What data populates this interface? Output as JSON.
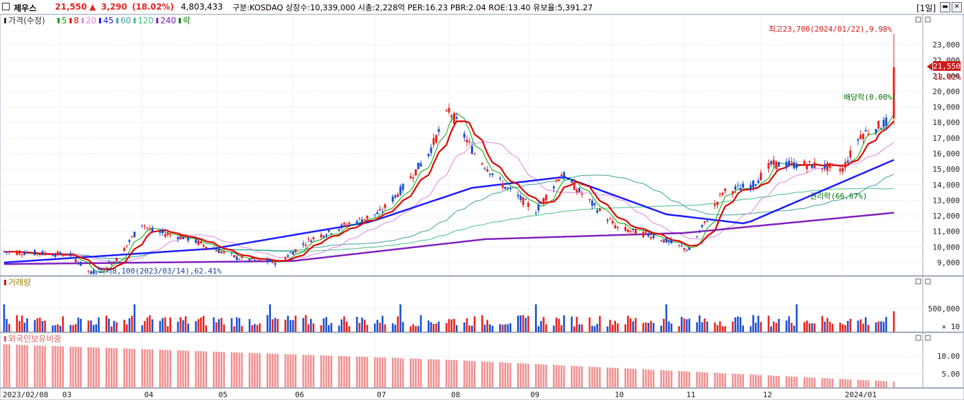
{
  "header": {
    "stock_name": "제우스",
    "price": "21,550",
    "change_arrow": "▲",
    "change": "3,290",
    "change_pct": "(18.02%)",
    "volume": "4,803,433",
    "info": "구분:KOSDAQ 상장수:10,339,000 시총:2,228억 PER:16.23 PBR:2.04 ROE:13.40 유보율:5,391.27",
    "period": "[1일]"
  },
  "price_pane": {
    "legend": [
      {
        "text": "가격(수정)",
        "color": "#333333"
      },
      {
        "text": "5",
        "color": "#00a000"
      },
      {
        "text": "8",
        "color": "#e00000"
      },
      {
        "text": "20",
        "color": "#e080e0"
      },
      {
        "text": "45",
        "color": "#1a1aff"
      },
      {
        "text": "60",
        "color": "#3aa0a0"
      },
      {
        "text": "120",
        "color": "#40c080"
      },
      {
        "text": "240",
        "color": "#8020c0"
      },
      {
        "text": "락",
        "color": "#008000"
      }
    ],
    "annotations": {
      "high": "최고23,700(2024/01/22),9.98%",
      "low": "최저8,100(2023/03/14),62.41%",
      "dividend": "배당락(0.00%)",
      "rights": "권리락(66.67%)"
    },
    "current_price_tag": "21,550",
    "current_pct_tag": "18.02%"
  },
  "volume_pane": {
    "title": "거래량",
    "axis_labels": [
      "500,000",
      "× 10"
    ]
  },
  "foreign_pane": {
    "title": "외국인보유비중",
    "axis_labels": [
      "10.00",
      "5.00"
    ]
  },
  "colors": {
    "up": "#e8221d",
    "down": "#1a4fd0",
    "bg": "#ffffff",
    "grid": "#c8ccd4"
  },
  "chart_data": {
    "type": "candlestick",
    "x_axis_labels": [
      "2023/02/08",
      "03",
      "04",
      "05",
      "06",
      "07",
      "08",
      "09",
      "10",
      "11",
      "12",
      "2024/01"
    ],
    "y_tick_labels": [
      "9,000",
      "10,000",
      "11,000",
      "12,000",
      "13,000",
      "14,000",
      "15,000",
      "16,000",
      "17,000",
      "18,000",
      "19,000",
      "20,000",
      "21,000",
      "22,000",
      "23,000"
    ],
    "ylim": [
      8000,
      24000
    ],
    "grid": true,
    "price_keypoints": [
      [
        "2023/02/08",
        9700
      ],
      [
        "2023/03/06",
        9500
      ],
      [
        "2023/03/14",
        8300
      ],
      [
        "2023/03/24",
        9200
      ],
      [
        "2023/04/03",
        11500
      ],
      [
        "2023/04/07",
        11000
      ],
      [
        "2023/04/20",
        10600
      ],
      [
        "2023/05/10",
        9300
      ],
      [
        "2023/05/26",
        9000
      ],
      [
        "2023/06/08",
        10500
      ],
      [
        "2023/06/23",
        11500
      ],
      [
        "2023/07/05",
        12200
      ],
      [
        "2023/07/14",
        13800
      ],
      [
        "2023/07/24",
        16000
      ],
      [
        "2023/08/01",
        18800
      ],
      [
        "2023/08/04",
        18000
      ],
      [
        "2023/08/11",
        16000
      ],
      [
        "2023/08/22",
        14000
      ],
      [
        "2023/09/04",
        12300
      ],
      [
        "2023/09/14",
        14700
      ],
      [
        "2023/09/27",
        12600
      ],
      [
        "2023/10/06",
        11200
      ],
      [
        "2023/10/20",
        10700
      ],
      [
        "2023/11/03",
        9800
      ],
      [
        "2023/11/16",
        13500
      ],
      [
        "2023/11/28",
        14000
      ],
      [
        "2023/12/05",
        15300
      ],
      [
        "2023/12/19",
        15300
      ],
      [
        "2024/01/02",
        15000
      ],
      [
        "2024/01/09",
        17200
      ],
      [
        "2024/01/19",
        18000
      ],
      [
        "2024/01/22",
        21550
      ]
    ],
    "high": {
      "value": 23700,
      "date": "2024/01/22"
    },
    "low": {
      "value": 8100,
      "date": "2023/03/14"
    },
    "moving_averages": {
      "ma45": [
        [
          "2023/02/08",
          9000
        ],
        [
          "2023/05/01",
          9900
        ],
        [
          "2023/07/01",
          11600
        ],
        [
          "2023/08/10",
          13800
        ],
        [
          "2023/09/15",
          14500
        ],
        [
          "2023/10/25",
          12100
        ],
        [
          "2023/11/25",
          11500
        ],
        [
          "2024/01/22",
          15600
        ]
      ],
      "ma240": [
        [
          "2023/02/08",
          8900
        ],
        [
          "2023/06/01",
          9100
        ],
        [
          "2023/08/15",
          10500
        ],
        [
          "2023/11/01",
          10900
        ],
        [
          "2024/01/22",
          12200
        ]
      ]
    },
    "current_price": 21550,
    "volume": {
      "ylim_label": "500,000",
      "multiplier": "× 10"
    },
    "foreign_ownership": {
      "start": 14.0,
      "mid_2023_07": 9.0,
      "end": 2.0
    }
  }
}
